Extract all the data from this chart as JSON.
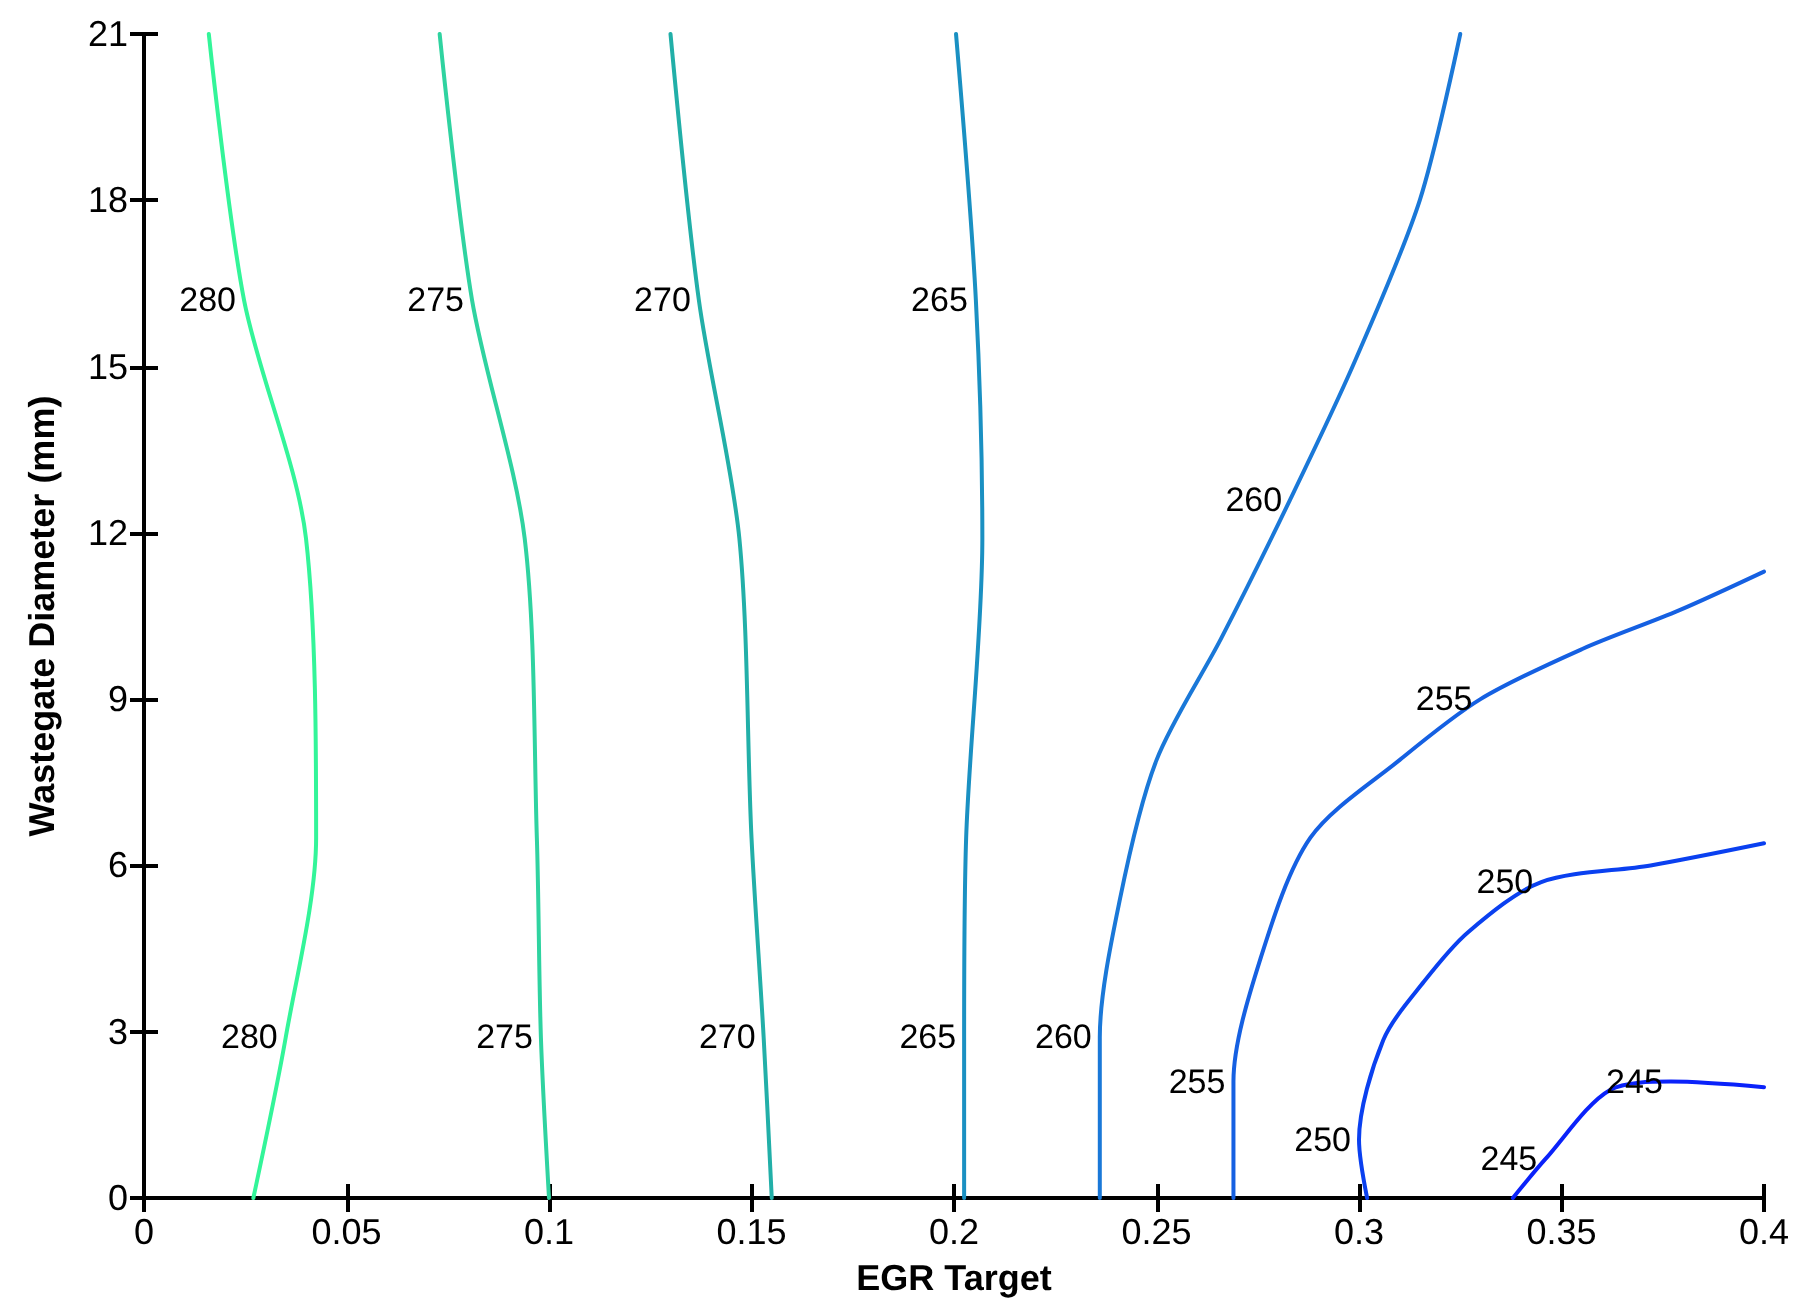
{
  "chart_data": {
    "type": "line",
    "xlabel": "EGR Target",
    "ylabel": "Wastegate Diameter (mm)",
    "xlim": [
      0,
      0.4
    ],
    "xticks": [
      0,
      0.05,
      0.1,
      0.15,
      0.2,
      0.25,
      0.3,
      0.35,
      0.4
    ],
    "ylim": [
      0,
      21
    ],
    "yticks": [
      0,
      3,
      6,
      9,
      12,
      15,
      18,
      21
    ],
    "grid": false,
    "legend": false,
    "marker": "none",
    "line_style": "solid",
    "series": [
      {
        "name": "280",
        "color": "#33f599",
        "x": [
          0.016,
          0.0247,
          0.04,
          0.0425,
          0.035,
          0.027
        ],
        "values": [
          21,
          16.2,
          11.9,
          6.5,
          2.9,
          0
        ]
      },
      {
        "name": "275",
        "color": "#2fd3a0",
        "x": [
          0.073,
          0.081,
          0.094,
          0.097,
          0.098,
          0.1
        ],
        "values": [
          21,
          16.2,
          11.9,
          6.5,
          2.9,
          0
        ]
      },
      {
        "name": "270",
        "color": "#22afa8",
        "x": [
          0.13,
          0.137,
          0.147,
          0.15,
          0.153,
          0.155
        ],
        "values": [
          21,
          16.2,
          11.9,
          6.5,
          2.9,
          0
        ]
      },
      {
        "name": "265",
        "color": "#1a90c2",
        "x": [
          0.2005,
          0.2054,
          0.207,
          0.203,
          0.2025,
          0.2025
        ],
        "values": [
          21,
          16.2,
          11.9,
          6.5,
          2.9,
          0
        ]
      },
      {
        "name": "260",
        "color": "#1a78d8",
        "x": [
          0.236,
          0.236,
          0.241,
          0.25,
          0.266,
          0.283,
          0.299,
          0.315,
          0.325
        ],
        "values": [
          0,
          2.9,
          5.4,
          7.9,
          10.1,
          12.6,
          15.1,
          18,
          21
        ]
      },
      {
        "name": "255",
        "color": "#1560e2",
        "x": [
          0.269,
          0.269,
          0.2756,
          0.288,
          0.31,
          0.33,
          0.355,
          0.379,
          0.4
        ],
        "values": [
          0,
          2.1,
          4.3,
          6.5,
          7.9,
          9.0,
          9.9,
          10.6,
          11.3
        ]
      },
      {
        "name": "250",
        "color": "#0a40f0",
        "x": [
          0.302,
          0.3,
          0.306,
          0.316,
          0.327,
          0.345,
          0.372,
          0.4
        ],
        "values": [
          0,
          1.05,
          2.85,
          3.9,
          4.8,
          5.7,
          6.0,
          6.4
        ]
      },
      {
        "name": "245",
        "color": "#0a22fa",
        "x": [
          0.338,
          0.346,
          0.362,
          0.377,
          0.4
        ],
        "values": [
          0,
          0.7,
          1.95,
          2.1,
          2.0
        ]
      }
    ]
  }
}
